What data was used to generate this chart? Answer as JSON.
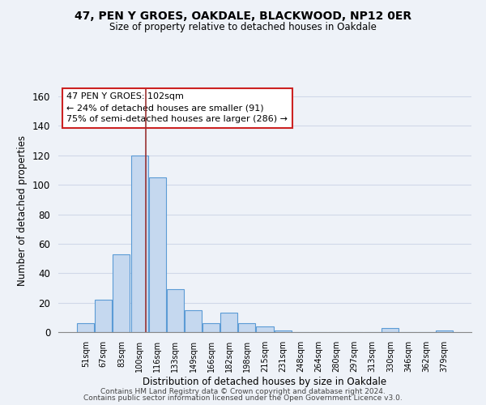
{
  "title": "47, PEN Y GROES, OAKDALE, BLACKWOOD, NP12 0ER",
  "subtitle": "Size of property relative to detached houses in Oakdale",
  "xlabel": "Distribution of detached houses by size in Oakdale",
  "ylabel": "Number of detached properties",
  "bar_labels": [
    "51sqm",
    "67sqm",
    "83sqm",
    "100sqm",
    "116sqm",
    "133sqm",
    "149sqm",
    "166sqm",
    "182sqm",
    "198sqm",
    "215sqm",
    "231sqm",
    "248sqm",
    "264sqm",
    "280sqm",
    "297sqm",
    "313sqm",
    "330sqm",
    "346sqm",
    "362sqm",
    "379sqm"
  ],
  "bar_values": [
    6,
    22,
    53,
    120,
    105,
    29,
    15,
    6,
    13,
    6,
    4,
    1,
    0,
    0,
    0,
    0,
    0,
    3,
    0,
    0,
    1
  ],
  "bar_color": "#c5d8ef",
  "bar_edge_color": "#5b9bd5",
  "ylim": [
    0,
    165
  ],
  "yticks": [
    0,
    20,
    40,
    60,
    80,
    100,
    120,
    140,
    160
  ],
  "annotation_title": "47 PEN Y GROES: 102sqm",
  "annotation_line1": "← 24% of detached houses are smaller (91)",
  "annotation_line2": "75% of semi-detached houses are larger (286) →",
  "property_bar_index": 3,
  "footer1": "Contains HM Land Registry data © Crown copyright and database right 2024.",
  "footer2": "Contains public sector information licensed under the Open Government Licence v3.0.",
  "background_color": "#eef2f8",
  "grid_color": "#d0d8e8",
  "vline_color": "#993333",
  "vline_x": 3.35
}
